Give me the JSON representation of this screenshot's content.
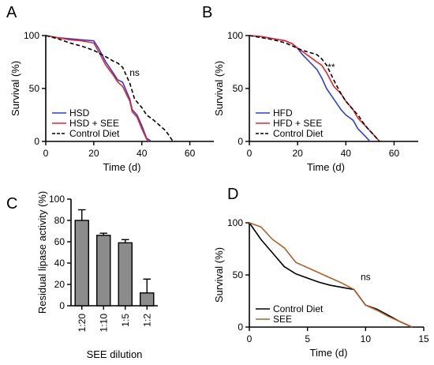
{
  "chart_data": [
    {
      "panel": "A",
      "type": "line",
      "xlabel": "Time (d)",
      "ylabel": "Survival (%)",
      "xlim": [
        0,
        70
      ],
      "ylim": [
        0,
        100
      ],
      "xticks": [
        "0",
        "20",
        "40",
        "60"
      ],
      "yticks": [
        "0",
        "50",
        "100"
      ],
      "annotation": "ns",
      "legend_position": "bottom-left",
      "series": [
        {
          "name": "HSD",
          "color": "#2b3fd6",
          "dash": "solid",
          "x": [
            0,
            5,
            10,
            15,
            20,
            22,
            25,
            28,
            30,
            32,
            35,
            36,
            38,
            40,
            42,
            44
          ],
          "y": [
            100,
            98,
            97,
            96,
            95,
            88,
            75,
            65,
            58,
            56,
            40,
            30,
            25,
            15,
            3,
            0
          ]
        },
        {
          "name": "HSD + SEE",
          "color": "#e8252b",
          "dash": "solid",
          "x": [
            0,
            5,
            10,
            15,
            20,
            22,
            25,
            28,
            30,
            32,
            35,
            36,
            38,
            40,
            42,
            43
          ],
          "y": [
            100,
            98,
            96,
            95,
            93,
            85,
            72,
            63,
            56,
            52,
            38,
            28,
            23,
            12,
            2,
            0
          ]
        },
        {
          "name": "Control Diet",
          "color": "#000000",
          "dash": "dashed",
          "x": [
            0,
            5,
            10,
            15,
            20,
            25,
            28,
            30,
            32,
            35,
            37,
            40,
            42,
            45,
            50,
            53
          ],
          "y": [
            100,
            97,
            93,
            90,
            86,
            80,
            76,
            74,
            70,
            55,
            40,
            32,
            25,
            20,
            10,
            0
          ]
        }
      ]
    },
    {
      "panel": "B",
      "type": "line",
      "xlabel": "Time (d)",
      "ylabel": "Survival (%)",
      "xlim": [
        0,
        70
      ],
      "ylim": [
        0,
        100
      ],
      "xticks": [
        "0",
        "20",
        "40",
        "60"
      ],
      "yticks": [
        "0",
        "50",
        "100"
      ],
      "annotation": "**",
      "legend_position": "bottom-left",
      "series": [
        {
          "name": "HFD",
          "color": "#2b3fd6",
          "dash": "solid",
          "x": [
            0,
            5,
            10,
            15,
            18,
            20,
            22,
            25,
            28,
            30,
            32,
            35,
            38,
            40,
            43,
            45,
            48,
            50
          ],
          "y": [
            100,
            99,
            97,
            95,
            92,
            88,
            82,
            75,
            68,
            60,
            50,
            40,
            30,
            25,
            20,
            12,
            5,
            0
          ]
        },
        {
          "name": "HFD + SEE",
          "color": "#e8252b",
          "dash": "solid",
          "x": [
            0,
            5,
            10,
            15,
            18,
            20,
            22,
            25,
            28,
            30,
            32,
            35,
            38,
            40,
            43,
            45,
            48,
            52,
            54
          ],
          "y": [
            100,
            99,
            97,
            95,
            92,
            88,
            85,
            80,
            75,
            72,
            65,
            52,
            45,
            38,
            30,
            22,
            15,
            5,
            0
          ]
        },
        {
          "name": "Control Diet",
          "color": "#000000",
          "dash": "dashed",
          "x": [
            0,
            5,
            10,
            15,
            18,
            20,
            22,
            25,
            28,
            30,
            32,
            35,
            38,
            40,
            43,
            45,
            48,
            52,
            54
          ],
          "y": [
            100,
            98,
            96,
            93,
            90,
            88,
            86,
            84,
            82,
            78,
            72,
            58,
            45,
            38,
            30,
            25,
            15,
            5,
            0
          ]
        }
      ]
    },
    {
      "panel": "C",
      "type": "bar",
      "xlabel": "SEE dilution",
      "ylabel": "Residual lipase activity (%)",
      "ylim": [
        0,
        100
      ],
      "yticks": [
        "0",
        "20",
        "40",
        "60",
        "80",
        "100"
      ],
      "categories": [
        "1:20",
        "1:10",
        "1:5",
        "1:2"
      ],
      "values": [
        80,
        66,
        59,
        12
      ],
      "errors": [
        10,
        2,
        3,
        13
      ],
      "color": "#8c8c8c"
    },
    {
      "panel": "D",
      "type": "line",
      "xlabel": "Time (d)",
      "ylabel": "Survival (%)",
      "xlim": [
        0,
        15
      ],
      "ylim": [
        0,
        100
      ],
      "xticks": [
        "0",
        "5",
        "10",
        "15"
      ],
      "yticks": [
        "0",
        "50",
        "100"
      ],
      "annotation": "ns",
      "legend_position": "bottom-left",
      "series": [
        {
          "name": "Control  Diet",
          "color": "#000000",
          "dash": "solid",
          "x": [
            0,
            1,
            2,
            3,
            4,
            5,
            6,
            7,
            8,
            9,
            10,
            11,
            12,
            13,
            14
          ],
          "y": [
            100,
            84,
            71,
            58,
            51,
            47,
            43,
            40,
            38,
            36,
            21,
            17,
            11,
            5,
            0
          ]
        },
        {
          "name": "SEE",
          "color": "#b0602a",
          "dash": "solid",
          "x": [
            0,
            1,
            2,
            3,
            4,
            5,
            6,
            7,
            8,
            9,
            10,
            11,
            12,
            13,
            14
          ],
          "y": [
            100,
            96,
            84,
            76,
            62,
            57,
            52,
            47,
            42,
            36,
            21,
            16,
            10,
            5,
            0
          ]
        }
      ]
    }
  ]
}
